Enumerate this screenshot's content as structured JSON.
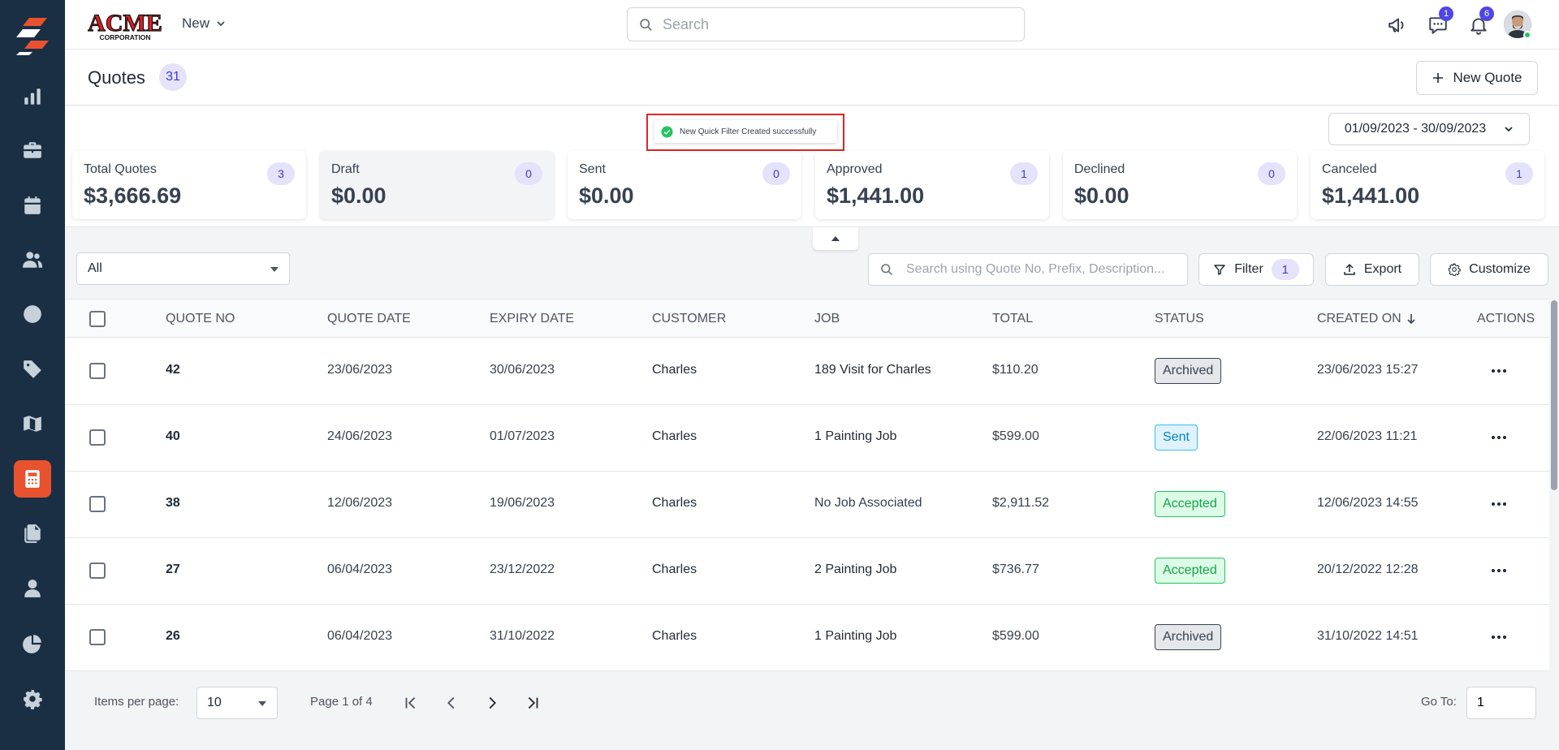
{
  "colors": {
    "sidebar_bg": "#1b2f44",
    "sidebar_active": "#e8522f",
    "accent": "#4f46e5",
    "highlight_border": "#dc2626"
  },
  "sidebar": {
    "items": [
      {
        "icon": "bar-chart-icon",
        "active": false
      },
      {
        "icon": "briefcase-icon",
        "active": false
      },
      {
        "icon": "calendar-icon",
        "active": false
      },
      {
        "icon": "users-icon",
        "active": false
      },
      {
        "icon": "clock-icon",
        "active": false
      },
      {
        "icon": "tag-icon",
        "active": false
      },
      {
        "icon": "map-icon",
        "active": false
      },
      {
        "icon": "calculator-icon",
        "active": true
      },
      {
        "icon": "documents-icon",
        "active": false
      },
      {
        "icon": "user-icon",
        "active": false
      },
      {
        "icon": "pie-chart-icon",
        "active": false
      },
      {
        "icon": "gear-icon",
        "active": false
      }
    ]
  },
  "header": {
    "logo_text": "ACME",
    "logo_subtext": "CORPORATION",
    "new_label": "New",
    "search_placeholder": "Search",
    "chat_badge": "1",
    "notification_badge": "6"
  },
  "page": {
    "title": "Quotes",
    "count": "31",
    "new_quote_label": "New Quote"
  },
  "toast": {
    "message": "New Quick Filter Created successfully"
  },
  "date_range": "01/09/2023 - 30/09/2023",
  "summary_cards": [
    {
      "label": "Total Quotes",
      "value": "$3,666.69",
      "count": "3"
    },
    {
      "label": "Draft",
      "value": "$0.00",
      "count": "0"
    },
    {
      "label": "Sent",
      "value": "$0.00",
      "count": "0"
    },
    {
      "label": "Approved",
      "value": "$1,441.00",
      "count": "1"
    },
    {
      "label": "Declined",
      "value": "$0.00",
      "count": "0"
    },
    {
      "label": "Canceled",
      "value": "$1,441.00",
      "count": "1"
    }
  ],
  "toolbar": {
    "quick_filter_value": "All",
    "search_placeholder": "Search using Quote No, Prefix, Description...",
    "filter_label": "Filter",
    "filter_count": "1",
    "export_label": "Export",
    "customize_label": "Customize"
  },
  "table": {
    "columns": [
      "QUOTE NO",
      "QUOTE DATE",
      "EXPIRY DATE",
      "CUSTOMER",
      "JOB",
      "TOTAL",
      "STATUS",
      "CREATED ON",
      "ACTIONS"
    ],
    "rows": [
      {
        "quote_no": "42",
        "quote_date": "23/06/2023",
        "expiry_date": "30/06/2023",
        "customer": "Charles",
        "job": "189 Visit for Charles",
        "total": "$110.20",
        "status": "Archived",
        "created_on": "23/06/2023 15:27"
      },
      {
        "quote_no": "40",
        "quote_date": "24/06/2023",
        "expiry_date": "01/07/2023",
        "customer": "Charles",
        "job": "1 Painting Job",
        "total": "$599.00",
        "status": "Sent",
        "created_on": "22/06/2023 11:21"
      },
      {
        "quote_no": "38",
        "quote_date": "12/06/2023",
        "expiry_date": "19/06/2023",
        "customer": "Charles",
        "job": "No Job Associated",
        "total": "$2,911.52",
        "status": "Accepted",
        "created_on": "12/06/2023 14:55"
      },
      {
        "quote_no": "27",
        "quote_date": "06/04/2023",
        "expiry_date": "23/12/2022",
        "customer": "Charles",
        "job": "2 Painting Job",
        "total": "$736.77",
        "status": "Accepted",
        "created_on": "20/12/2022 12:28"
      },
      {
        "quote_no": "26",
        "quote_date": "06/04/2023",
        "expiry_date": "31/10/2022",
        "customer": "Charles",
        "job": "1 Painting Job",
        "total": "$599.00",
        "status": "Archived",
        "created_on": "31/10/2022 14:51"
      }
    ]
  },
  "footer": {
    "items_per_page_label": "Items per page:",
    "items_per_page_value": "10",
    "page_info": "Page 1 of 4",
    "go_to_label": "Go To:",
    "go_to_value": "1"
  }
}
